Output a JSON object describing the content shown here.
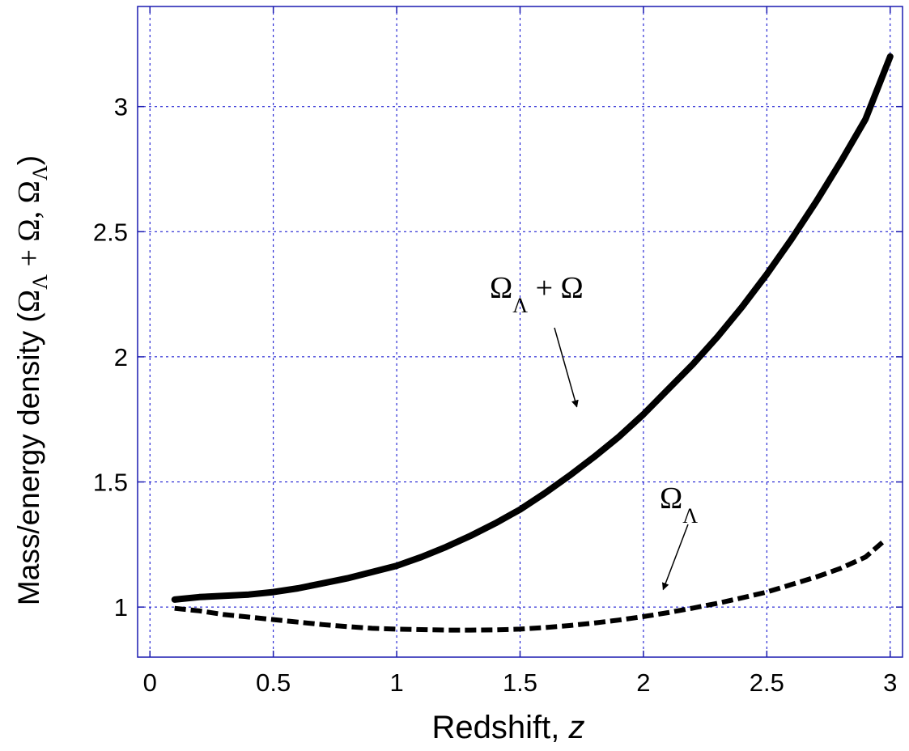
{
  "chart_data": {
    "type": "line",
    "xlabel": "Redshift, ",
    "xlabel_var": "z",
    "ylabel_prefix": "Mass/energy density (",
    "ylabel_suffix": ")",
    "xlim": [
      -0.05,
      3.05
    ],
    "ylim": [
      0.8,
      3.4
    ],
    "xticks": [
      0,
      0.5,
      1,
      1.5,
      2,
      2.5,
      3
    ],
    "xtick_labels": [
      "0",
      "0.5",
      "1",
      "1.5",
      "2",
      "2.5",
      "3"
    ],
    "yticks": [
      1,
      1.5,
      2,
      2.5,
      3
    ],
    "ytick_labels": [
      "1",
      "1.5",
      "2",
      "2.5",
      "3"
    ],
    "grid": true,
    "series": [
      {
        "style": "solid",
        "x": [
          0.1,
          0.2,
          0.3,
          0.4,
          0.5,
          0.6,
          0.7,
          0.8,
          0.9,
          1.0,
          1.1,
          1.2,
          1.3,
          1.4,
          1.5,
          1.6,
          1.7,
          1.8,
          1.9,
          2.0,
          2.1,
          2.2,
          2.3,
          2.4,
          2.5,
          2.6,
          2.7,
          2.8,
          2.9,
          3.0
        ],
        "y": [
          1.03,
          1.04,
          1.045,
          1.05,
          1.06,
          1.075,
          1.095,
          1.115,
          1.14,
          1.165,
          1.2,
          1.24,
          1.285,
          1.335,
          1.39,
          1.455,
          1.525,
          1.6,
          1.68,
          1.77,
          1.87,
          1.97,
          2.08,
          2.2,
          2.33,
          2.47,
          2.62,
          2.78,
          2.95,
          3.2
        ]
      },
      {
        "style": "dashed",
        "x": [
          0.1,
          0.2,
          0.3,
          0.4,
          0.5,
          0.6,
          0.7,
          0.8,
          0.9,
          1.0,
          1.1,
          1.2,
          1.3,
          1.4,
          1.5,
          1.6,
          1.7,
          1.8,
          1.9,
          2.0,
          2.1,
          2.2,
          2.3,
          2.4,
          2.5,
          2.6,
          2.7,
          2.8,
          2.9,
          2.97
        ],
        "y": [
          0.995,
          0.985,
          0.97,
          0.96,
          0.95,
          0.94,
          0.93,
          0.922,
          0.915,
          0.912,
          0.91,
          0.908,
          0.908,
          0.909,
          0.912,
          0.918,
          0.926,
          0.936,
          0.948,
          0.962,
          0.978,
          0.996,
          1.015,
          1.037,
          1.06,
          1.09,
          1.12,
          1.155,
          1.2,
          1.26
        ]
      }
    ],
    "annotations": [
      {
        "text": "Ω",
        "sub": "Λ",
        "rest": " + Ω",
        "target_x": 1.73,
        "target_y": 1.8
      },
      {
        "text": "Ω",
        "sub": "Λ",
        "rest": "",
        "target_x": 2.08,
        "target_y": 1.07
      }
    ],
    "ylabel_terms": [
      {
        "text": "Ω",
        "sub": "Λ"
      },
      {
        "text": " + Ω, ",
        "sub": ""
      },
      {
        "text": "Ω",
        "sub": "Λ"
      }
    ]
  }
}
